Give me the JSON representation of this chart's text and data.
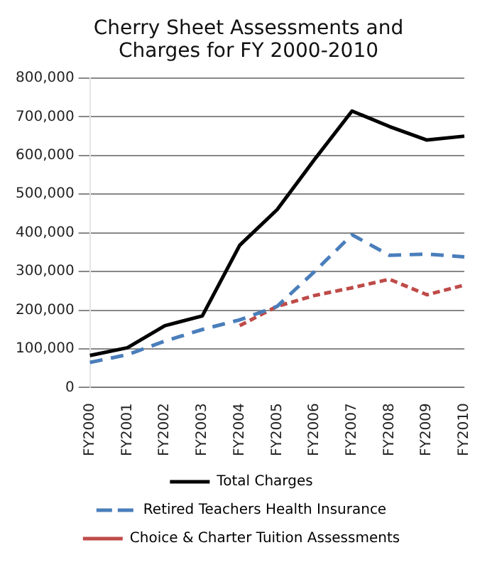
{
  "chart_data": {
    "type": "line",
    "title": "Cherry Sheet Assessments and Charges for FY 2000-2010",
    "categories": [
      "FY2000",
      "FY2001",
      "FY2002",
      "FY2003",
      "FY2004",
      "FY2005",
      "FY2006",
      "FY2007",
      "FY2008",
      "FY2009",
      "FY2010"
    ],
    "series": [
      {
        "name": "Total Charges",
        "color": "#000000",
        "line_style": "solid",
        "values": [
          83000,
          103000,
          160000,
          185000,
          368000,
          460000,
          590000,
          715000,
          675000,
          640000,
          650000
        ]
      },
      {
        "name": "Retired Teachers Health Insurance",
        "color": "#4a7ebb",
        "line_style": "dashed",
        "values": [
          65000,
          85000,
          120000,
          150000,
          175000,
          210000,
          300000,
          395000,
          342000,
          345000,
          338000
        ]
      },
      {
        "name": "Choice & Charter Tuition Assessments",
        "color": "#be4b48",
        "line_style": "dotted",
        "values": [
          null,
          null,
          null,
          null,
          160000,
          210000,
          238000,
          258000,
          280000,
          240000,
          265000
        ]
      }
    ],
    "ylim": [
      0,
      800000
    ],
    "yticks": [
      0,
      {
        "value": 100000,
        "label": "100,000"
      },
      {
        "value": 200000,
        "label": "200,000"
      },
      {
        "value": 300000,
        "label": "300,000"
      },
      {
        "value": 400000,
        "label": "400,000"
      },
      {
        "value": 500000,
        "label": "500,000"
      },
      {
        "value": 600000,
        "label": "600,000"
      },
      {
        "value": 700000,
        "label": "700,000"
      },
      {
        "value": 800000,
        "label": "800,000"
      }
    ],
    "grid": "y",
    "legend": "bottom",
    "marker": "none"
  }
}
